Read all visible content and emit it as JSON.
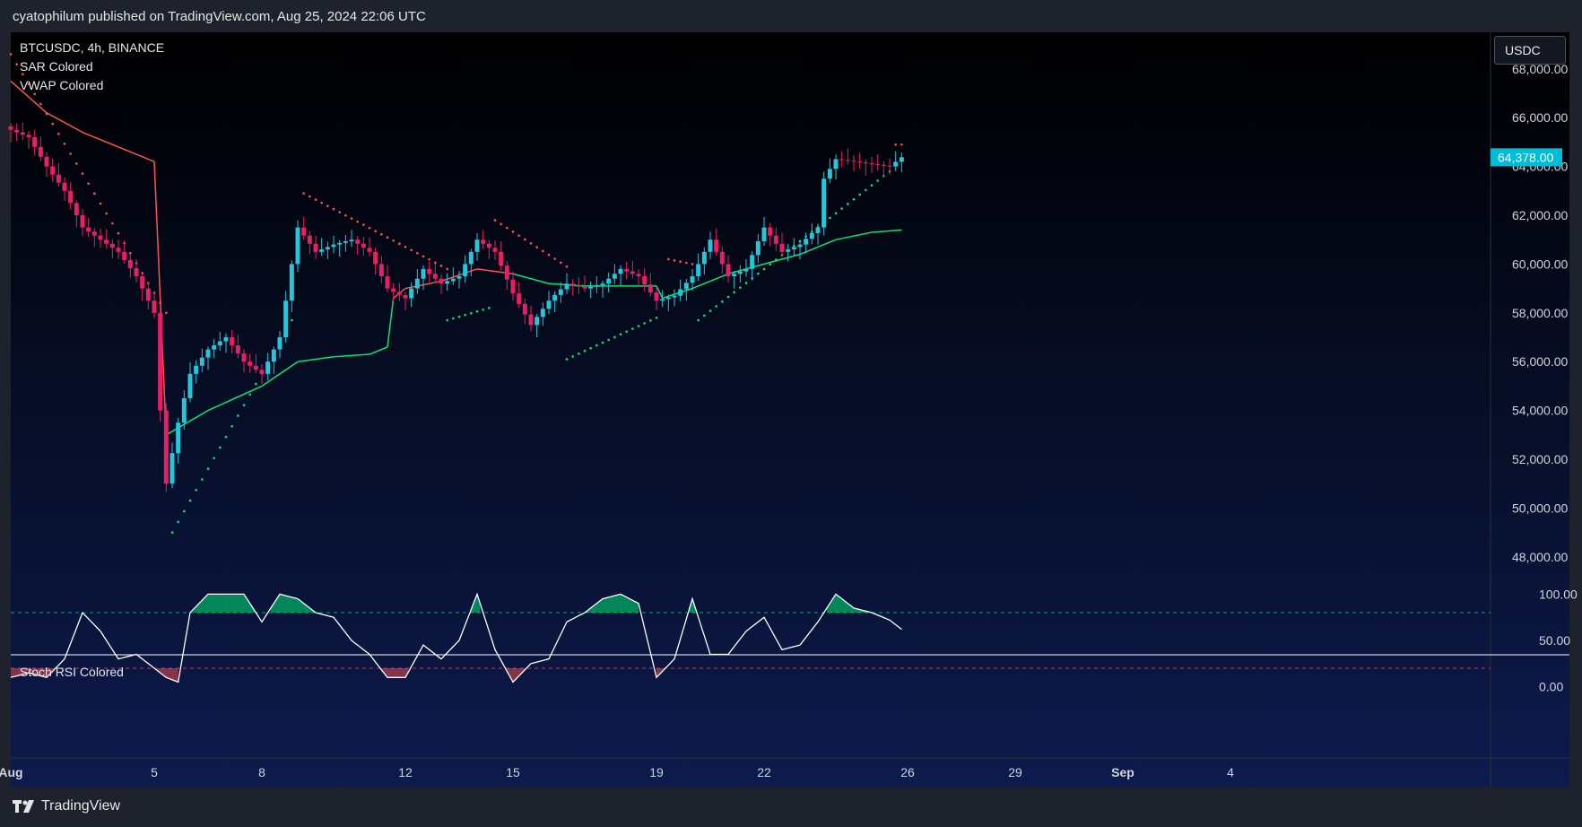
{
  "header": {
    "published_text": "cyatophilum published on TradingView.com, Aug 25, 2024 22:06 UTC"
  },
  "legend": {
    "symbol": "BTCUSDC, 4h, BINANCE",
    "indicator1": "SAR Colored",
    "indicator2": "VWAP Colored",
    "pane2_title": "Stoch RSI Colored"
  },
  "currency_badge": "USDC",
  "last_price_label": "64,378.00",
  "footer": {
    "brand": "TradingView"
  },
  "colors": {
    "up": "#26c6da",
    "down": "#e91e63",
    "sar_up": "#00e676",
    "sar_down": "#ff5252",
    "vwap_up": "#00e676",
    "vwap_down": "#ff5252",
    "stoch_line": "#ffffff",
    "background_top": "#000000",
    "background_bottom": "#0d1b4d"
  },
  "chart_data": [
    {
      "type": "candlestick",
      "title": "BTCUSDC, 4h, BINANCE",
      "y_ticks": [
        "68,000.00",
        "66,000.00",
        "64,000.00",
        "62,000.00",
        "60,000.00",
        "58,000.00",
        "56,000.00",
        "54,000.00",
        "52,000.00",
        "50,000.00",
        "48,000.00"
      ],
      "ylim": [
        47000,
        69500
      ],
      "x_ticks": [
        "Aug",
        "5",
        "8",
        "12",
        "15",
        "19",
        "22",
        "26",
        "29",
        "Sep",
        "4"
      ],
      "last_price": 64378,
      "series": [
        {
          "name": "BTCUSDC",
          "anchor_points": [
            [
              "Aug 1 00:00",
              65500
            ],
            [
              "Aug 1 12:00",
              65200
            ],
            [
              "Aug 2 00:00",
              64000
            ],
            [
              "Aug 2 12:00",
              63000
            ],
            [
              "Aug 3 00:00",
              61500
            ],
            [
              "Aug 3 12:00",
              61000
            ],
            [
              "Aug 4 00:00",
              60500
            ],
            [
              "Aug 4 12:00",
              59500
            ],
            [
              "Aug 5 00:00",
              58000
            ],
            [
              "Aug 5 04:00",
              54000
            ],
            [
              "Aug 5 08:00",
              51000
            ],
            [
              "Aug 5 16:00",
              53500
            ],
            [
              "Aug 6 00:00",
              55500
            ],
            [
              "Aug 6 12:00",
              56500
            ],
            [
              "Aug 7 00:00",
              57000
            ],
            [
              "Aug 7 12:00",
              56000
            ],
            [
              "Aug 8 00:00",
              55500
            ],
            [
              "Aug 8 12:00",
              57000
            ],
            [
              "Aug 8 20:00",
              60000
            ],
            [
              "Aug 9 00:00",
              61500
            ],
            [
              "Aug 9 12:00",
              60500
            ],
            [
              "Aug 10 00:00",
              60800
            ],
            [
              "Aug 10 12:00",
              61000
            ],
            [
              "Aug 11 00:00",
              60500
            ],
            [
              "Aug 11 12:00",
              59000
            ],
            [
              "Aug 12 00:00",
              58600
            ],
            [
              "Aug 12 12:00",
              59800
            ],
            [
              "Aug 13 00:00",
              59200
            ],
            [
              "Aug 13 12:00",
              59500
            ],
            [
              "Aug 14 00:00",
              61000
            ],
            [
              "Aug 14 12:00",
              60500
            ],
            [
              "Aug 15 00:00",
              58800
            ],
            [
              "Aug 15 12:00",
              57500
            ],
            [
              "Aug 16 00:00",
              58500
            ],
            [
              "Aug 16 12:00",
              59200
            ],
            [
              "Aug 17 00:00",
              59000
            ],
            [
              "Aug 17 12:00",
              59200
            ],
            [
              "Aug 18 00:00",
              59800
            ],
            [
              "Aug 18 12:00",
              59500
            ],
            [
              "Aug 19 00:00",
              58500
            ],
            [
              "Aug 19 12:00",
              58700
            ],
            [
              "Aug 20 00:00",
              59500
            ],
            [
              "Aug 20 12:00",
              61000
            ],
            [
              "Aug 21 00:00",
              59500
            ],
            [
              "Aug 21 12:00",
              59800
            ],
            [
              "Aug 22 00:00",
              61500
            ],
            [
              "Aug 22 12:00",
              60500
            ],
            [
              "Aug 23 00:00",
              60800
            ],
            [
              "Aug 23 12:00",
              61500
            ],
            [
              "Aug 23 16:00",
              63500
            ],
            [
              "Aug 24 00:00",
              64300
            ],
            [
              "Aug 24 12:00",
              64200
            ],
            [
              "Aug 25 00:00",
              64100
            ],
            [
              "Aug 25 12:00",
              64000
            ],
            [
              "Aug 25 20:00",
              64378
            ]
          ]
        }
      ],
      "vwap": {
        "name": "VWAP Colored",
        "anchor_points": [
          [
            "Aug 1 00:00",
            67500
          ],
          [
            "Aug 2 00:00",
            66200
          ],
          [
            "Aug 3 00:00",
            65400
          ],
          [
            "Aug 4 00:00",
            64800
          ],
          [
            "Aug 5 00:00",
            64200
          ],
          [
            "Aug 5 08:00",
            53000
          ],
          [
            "Aug 6 12:00",
            54000
          ],
          [
            "Aug 8 00:00",
            55000
          ],
          [
            "Aug 9 00:00",
            56000
          ],
          [
            "Aug 10 00:00",
            56200
          ],
          [
            "Aug 11 00:00",
            56300
          ],
          [
            "Aug 11 12:00",
            56600
          ],
          [
            "Aug 11 16:00",
            58600
          ],
          [
            "Aug 12 00:00",
            59000
          ],
          [
            "Aug 13 00:00",
            59300
          ],
          [
            "Aug 14 00:00",
            59800
          ],
          [
            "Aug 15 00:00",
            59600
          ],
          [
            "Aug 16 00:00",
            59200
          ],
          [
            "Aug 17 00:00",
            59100
          ],
          [
            "Aug 18 00:00",
            59100
          ],
          [
            "Aug 19 00:00",
            59100
          ],
          [
            "Aug 19 04:00",
            58600
          ],
          [
            "Aug 20 00:00",
            59000
          ],
          [
            "Aug 21 00:00",
            59600
          ],
          [
            "Aug 22 00:00",
            60000
          ],
          [
            "Aug 23 00:00",
            60400
          ],
          [
            "Aug 24 00:00",
            61000
          ],
          [
            "Aug 25 00:00",
            61300
          ],
          [
            "Aug 25 20:00",
            61400
          ]
        ]
      },
      "sar": {
        "name": "SAR Colored",
        "segments": [
          {
            "trend": "down",
            "from": [
              "Aug 1 00:00",
              68600
            ],
            "to": [
              "Aug 5 08:00",
              58000
            ]
          },
          {
            "trend": "up",
            "from": [
              "Aug 5 12:00",
              49000
            ],
            "to": [
              "Aug 8 20:00",
              57700
            ]
          },
          {
            "trend": "down",
            "from": [
              "Aug 9 04:00",
              62900
            ],
            "to": [
              "Aug 13 04:00",
              59800
            ]
          },
          {
            "trend": "up",
            "from": [
              "Aug 13 04:00",
              57700
            ],
            "to": [
              "Aug 14 08:00",
              58200
            ]
          },
          {
            "trend": "down",
            "from": [
              "Aug 14 12:00",
              61800
            ],
            "to": [
              "Aug 16 12:00",
              59900
            ]
          },
          {
            "trend": "up",
            "from": [
              "Aug 16 12:00",
              56100
            ],
            "to": [
              "Aug 19 00:00",
              57800
            ]
          },
          {
            "trend": "down",
            "from": [
              "Aug 19 08:00",
              60200
            ],
            "to": [
              "Aug 20 00:00",
              60000
            ]
          },
          {
            "trend": "up",
            "from": [
              "Aug 20 04:00",
              57700
            ],
            "to": [
              "Aug 25 12:00",
              63800
            ]
          },
          {
            "trend": "down",
            "from": [
              "Aug 25 16:00",
              64900
            ],
            "to": [
              "Aug 25 20:00",
              64900
            ]
          }
        ]
      }
    },
    {
      "type": "line",
      "title": "Stoch RSI Colored",
      "y_ticks": [
        "100.00",
        "50.00",
        "0.00"
      ],
      "ylim": [
        -12,
        112
      ],
      "bands": {
        "upper": 80,
        "lower": 20
      },
      "series": [
        {
          "name": "Stoch RSI",
          "anchor_points": [
            [
              "Aug 1 00:00",
              10
            ],
            [
              "Aug 1 12:00",
              15
            ],
            [
              "Aug 2 00:00",
              10
            ],
            [
              "Aug 2 12:00",
              30
            ],
            [
              "Aug 3 00:00",
              80
            ],
            [
              "Aug 3 12:00",
              60
            ],
            [
              "Aug 4 00:00",
              30
            ],
            [
              "Aug 4 12:00",
              35
            ],
            [
              "Aug 5 00:00",
              20
            ],
            [
              "Aug 5 08:00",
              10
            ],
            [
              "Aug 5 16:00",
              5
            ],
            [
              "Aug 6 00:00",
              80
            ],
            [
              "Aug 6 12:00",
              100
            ],
            [
              "Aug 7 00:00",
              100
            ],
            [
              "Aug 7 12:00",
              100
            ],
            [
              "Aug 8 00:00",
              70
            ],
            [
              "Aug 8 12:00",
              100
            ],
            [
              "Aug 9 00:00",
              95
            ],
            [
              "Aug 9 12:00",
              80
            ],
            [
              "Aug 10 00:00",
              75
            ],
            [
              "Aug 10 12:00",
              50
            ],
            [
              "Aug 11 00:00",
              35
            ],
            [
              "Aug 11 12:00",
              10
            ],
            [
              "Aug 12 00:00",
              10
            ],
            [
              "Aug 12 12:00",
              45
            ],
            [
              "Aug 13 00:00",
              30
            ],
            [
              "Aug 13 12:00",
              50
            ],
            [
              "Aug 14 00:00",
              100
            ],
            [
              "Aug 14 12:00",
              40
            ],
            [
              "Aug 15 00:00",
              5
            ],
            [
              "Aug 15 12:00",
              25
            ],
            [
              "Aug 16 00:00",
              30
            ],
            [
              "Aug 16 12:00",
              70
            ],
            [
              "Aug 17 00:00",
              80
            ],
            [
              "Aug 17 12:00",
              95
            ],
            [
              "Aug 18 00:00",
              100
            ],
            [
              "Aug 18 12:00",
              90
            ],
            [
              "Aug 19 00:00",
              10
            ],
            [
              "Aug 19 12:00",
              30
            ],
            [
              "Aug 20 00:00",
              95
            ],
            [
              "Aug 20 12:00",
              35
            ],
            [
              "Aug 21 00:00",
              35
            ],
            [
              "Aug 21 12:00",
              60
            ],
            [
              "Aug 22 00:00",
              75
            ],
            [
              "Aug 22 12:00",
              40
            ],
            [
              "Aug 23 00:00",
              45
            ],
            [
              "Aug 23 12:00",
              70
            ],
            [
              "Aug 24 00:00",
              100
            ],
            [
              "Aug 24 12:00",
              85
            ],
            [
              "Aug 25 00:00",
              80
            ],
            [
              "Aug 25 12:00",
              72
            ],
            [
              "Aug 25 20:00",
              62
            ]
          ]
        }
      ]
    }
  ]
}
